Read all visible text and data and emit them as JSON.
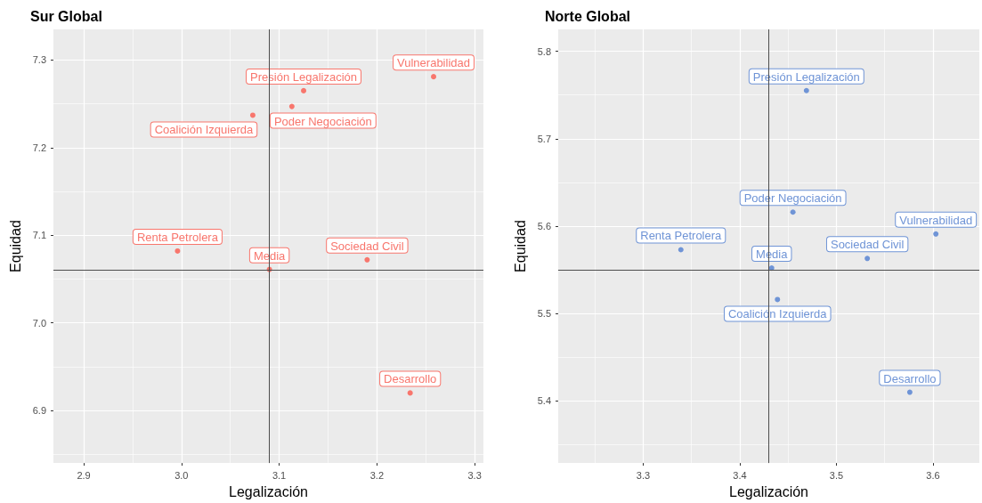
{
  "chart_data": [
    {
      "type": "scatter",
      "title": "Sur Global",
      "xlabel": "Legalización",
      "ylabel": "Equidad",
      "grid": true,
      "marker": "circle",
      "xlim": [
        2.869,
        3.309
      ],
      "xticks": [
        2.9,
        {
          "value": 3,
          "label": "3.0"
        },
        3.1,
        3.2,
        3.3
      ],
      "ylim": [
        6.84,
        7.335
      ],
      "yticks": [
        6.9,
        {
          "value": 7,
          "label": "7.0"
        },
        7.1,
        7.2,
        7.3
      ],
      "series": [
        {
          "color": "#f8766d",
          "x": [
            3.258,
            3.125,
            3.113,
            3.073,
            2.996,
            3.09,
            3.19,
            3.234
          ],
          "values": [
            7.281,
            7.265,
            7.247,
            7.237,
            7.082,
            7.061,
            7.072,
            6.92
          ]
        }
      ],
      "ref_lines": [
        {
          "axis": "x",
          "value": 3.09,
          "color": "#4d4d4d"
        },
        {
          "axis": "y",
          "value": 7.061,
          "color": "#4d4d4d"
        }
      ],
      "annotations": [
        {
          "text": "Vulnerabilidad",
          "x": 3.258,
          "y": 7.281
        },
        {
          "text": "Presión Legalización",
          "x": 3.125,
          "y": 7.265
        },
        {
          "text": "Poder Negociación",
          "x": 3.113,
          "y": 7.247
        },
        {
          "text": "Coalición Izquierda",
          "x": 3.073,
          "y": 7.237
        },
        {
          "text": "Renta Petrolera",
          "x": 2.996,
          "y": 7.082
        },
        {
          "text": "Media",
          "x": 3.09,
          "y": 7.061
        },
        {
          "text": "Sociedad Civil",
          "x": 3.19,
          "y": 7.072
        },
        {
          "text": "Desarrollo",
          "x": 3.234,
          "y": 6.92
        }
      ]
    },
    {
      "type": "scatter",
      "title": "Norte Global",
      "xlabel": "Legalización",
      "ylabel": "Equidad",
      "grid": true,
      "marker": "circle",
      "xlim": [
        3.212,
        3.648
      ],
      "xticks": [
        3.3,
        3.4,
        3.5,
        3.6
      ],
      "ylim": [
        5.329,
        5.825
      ],
      "yticks": [
        5.4,
        5.5,
        5.6,
        5.7,
        5.8
      ],
      "series": [
        {
          "color": "#6f94d6",
          "x": [
            3.469,
            3.455,
            3.603,
            3.339,
            3.532,
            3.433,
            3.439,
            3.576
          ],
          "values": [
            5.755,
            5.616,
            5.591,
            5.573,
            5.563,
            5.552,
            5.516,
            5.41
          ]
        }
      ],
      "ref_lines": [
        {
          "axis": "x",
          "value": 3.43,
          "color": "#4d4d4d"
        },
        {
          "axis": "y",
          "value": 5.55,
          "color": "#4d4d4d"
        }
      ],
      "annotations": [
        {
          "text": "Presión Legalización",
          "x": 3.469,
          "y": 5.755
        },
        {
          "text": "Poder Negociación",
          "x": 3.455,
          "y": 5.616
        },
        {
          "text": "Vulnerabilidad",
          "x": 3.603,
          "y": 5.591
        },
        {
          "text": "Renta Petrolera",
          "x": 3.339,
          "y": 5.573
        },
        {
          "text": "Sociedad Civil",
          "x": 3.532,
          "y": 5.563
        },
        {
          "text": "Media",
          "x": 3.433,
          "y": 5.552
        },
        {
          "text": "Coalición Izquierda",
          "x": 3.439,
          "y": 5.516
        },
        {
          "text": "Desarrollo",
          "x": 3.576,
          "y": 5.41
        }
      ]
    }
  ]
}
